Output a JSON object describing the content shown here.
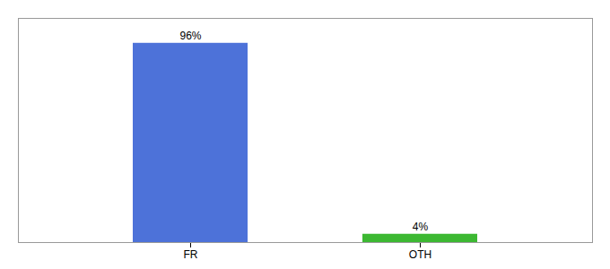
{
  "chart_data": {
    "type": "bar",
    "categories": [
      "FR",
      "OTH"
    ],
    "values": [
      96,
      4
    ],
    "value_labels": [
      "96%",
      "4%"
    ],
    "colors": [
      "#4d72d9",
      "#3cb832"
    ],
    "ylim": [
      0,
      108
    ],
    "data_labels": true,
    "tick_labels": "x"
  }
}
